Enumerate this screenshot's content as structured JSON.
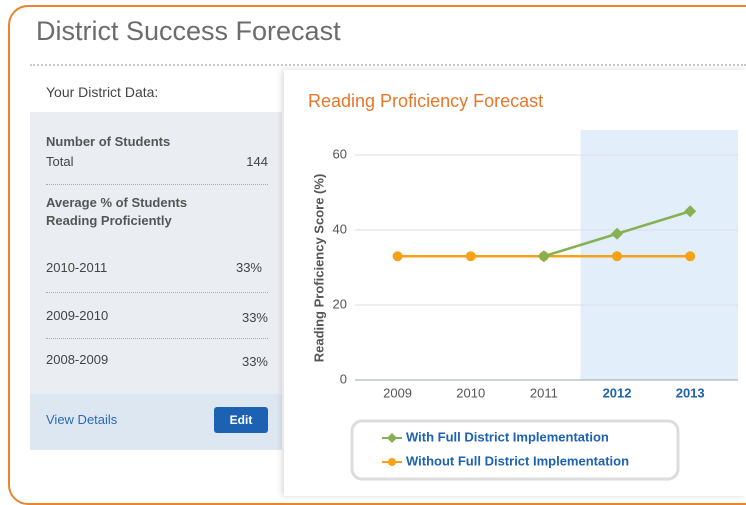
{
  "header": {
    "title": "District Success Forecast"
  },
  "sidebar": {
    "heading": "Your District Data:",
    "students": {
      "label": "Number of Students",
      "row_label": "Total",
      "value": 144
    },
    "proficiency": {
      "label": "Average % of Students Reading Proficiently",
      "rows": [
        {
          "year": "2010-2011",
          "value": "33%"
        },
        {
          "year": "2009-2010",
          "value": "33%"
        },
        {
          "year": "2008-2009",
          "value": "33%"
        }
      ]
    },
    "link": "View Details",
    "button": "Edit"
  },
  "chart_data": {
    "type": "line",
    "title": "Reading Proficiency Forecast",
    "y_label": "Reading Proficiency Score (%)",
    "categories": [
      "2009",
      "2010",
      "2011",
      "2012",
      "2013"
    ],
    "highlight": [
      "2012",
      "2013"
    ],
    "series": [
      {
        "name": "Without Full District Implementation",
        "color": "#f5a219",
        "marker": "circle",
        "values": [
          33,
          33,
          33,
          33,
          33
        ]
      },
      {
        "name": "With Full District Implementation",
        "color": "#86b052",
        "marker": "diamond",
        "values": [
          null,
          null,
          33,
          39,
          45
        ]
      }
    ],
    "ylim": [
      0,
      60
    ],
    "yticks": [
      0,
      20,
      40,
      60
    ],
    "grid": true
  }
}
